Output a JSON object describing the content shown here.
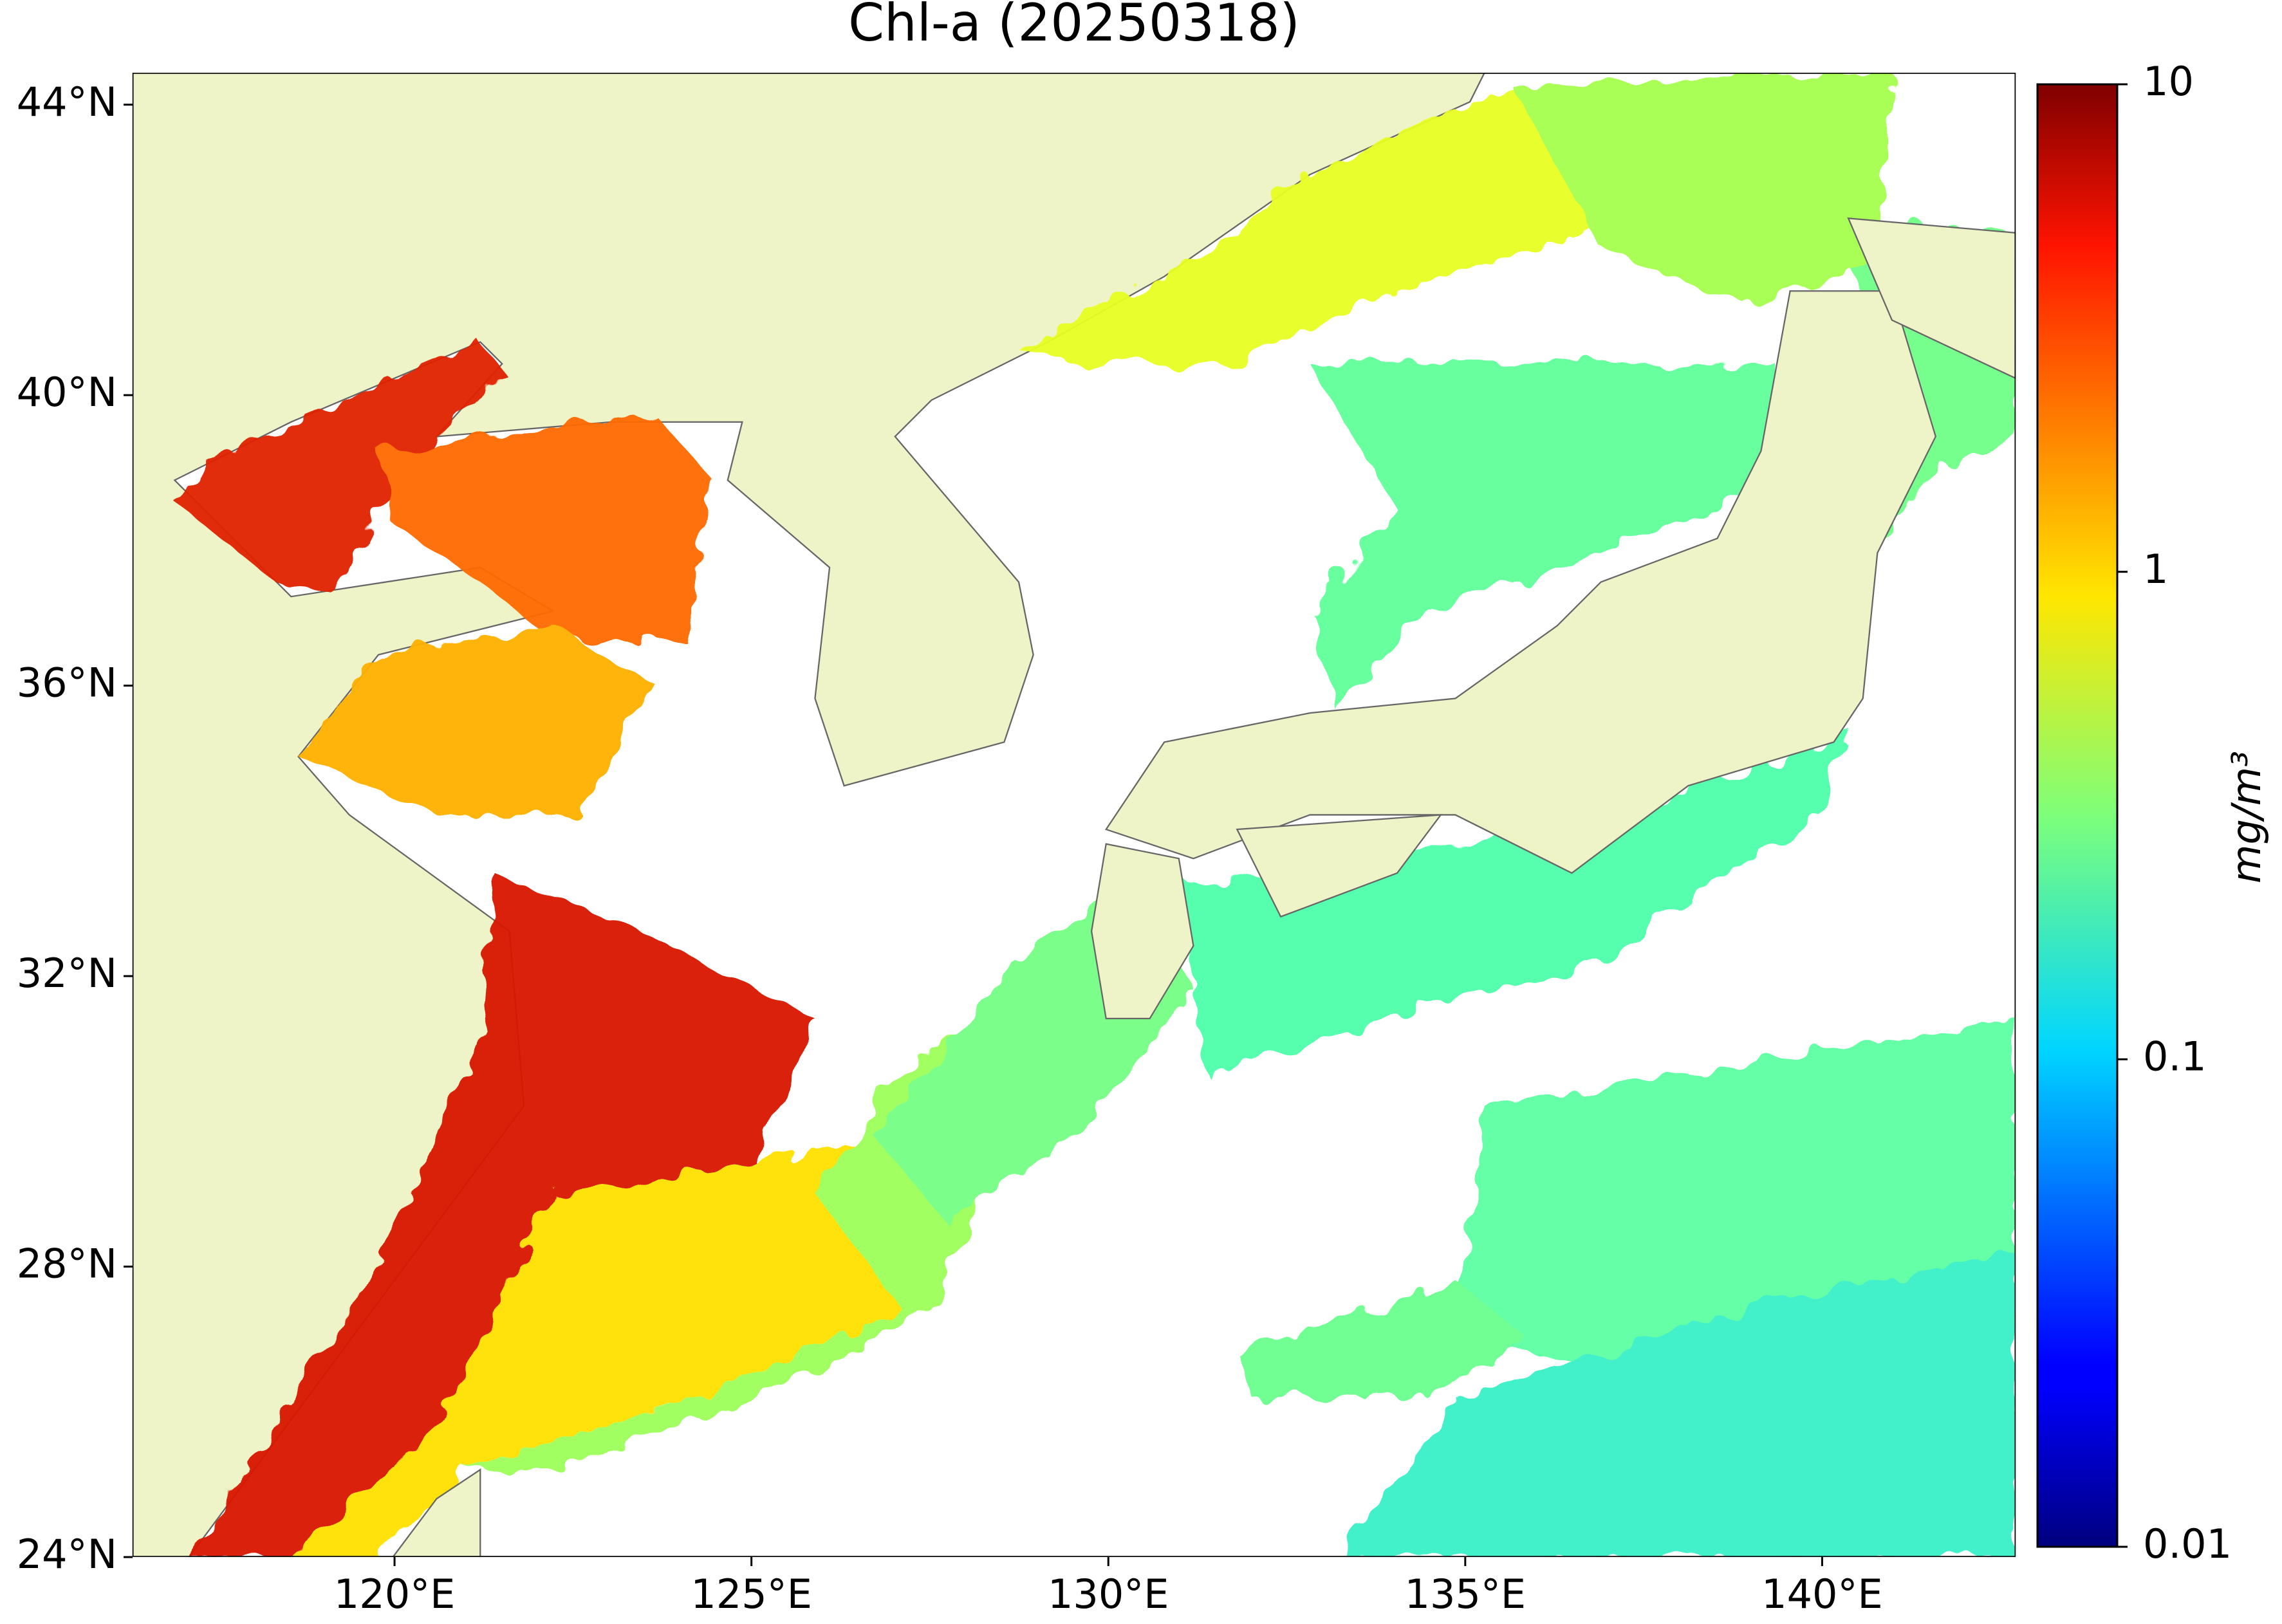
{
  "chart_data": {
    "type": "map",
    "title": "Chl-a (20250318)",
    "xlim": [
      116.33,
      142.71
    ],
    "ylim": [
      24,
      44.44
    ],
    "xticks": [
      {
        "value": 120,
        "label": "120°E"
      },
      {
        "value": 125,
        "label": "125°E"
      },
      {
        "value": 130,
        "label": "130°E"
      },
      {
        "value": 135,
        "label": "135°E"
      },
      {
        "value": 140,
        "label": "140°E"
      }
    ],
    "yticks": [
      {
        "value": 24,
        "label": "24°N"
      },
      {
        "value": 28,
        "label": "28°N"
      },
      {
        "value": 32,
        "label": "32°N"
      },
      {
        "value": 36,
        "label": "36°N"
      },
      {
        "value": 40,
        "label": "40°N"
      },
      {
        "value": 44,
        "label": "44°N"
      }
    ],
    "colorbar": {
      "label": "mg/m³",
      "scale": "log",
      "lim": [
        0.01,
        10
      ],
      "ticks": [
        0.01,
        0.1,
        1,
        10
      ],
      "colormap": "jet"
    }
  }
}
